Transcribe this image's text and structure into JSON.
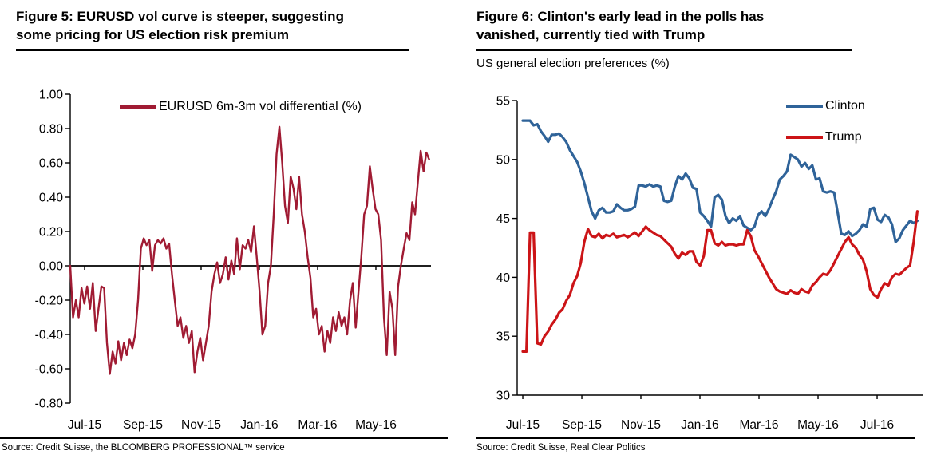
{
  "panels": {
    "fig5": {
      "title": "Figure 5: EURUSD vol curve is steeper, suggesting some pricing for US election risk premium",
      "source": "Source: Credit Suisse, the BLOOMBERG PROFESSIONAL™ service"
    },
    "fig6": {
      "title": "Figure 6: Clinton's early lead in the polls has vanished, currently tied with Trump",
      "subtitle": "US general election preferences (%)",
      "source": "Source: Credit Suisse, Real Clear Politics"
    }
  },
  "chart_data": [
    {
      "type": "line",
      "title": "Figure 5: EURUSD vol curve is steeper, suggesting some pricing for US election risk premium",
      "xlabel": "",
      "ylabel": "",
      "x_tick_labels": [
        "Jul-15",
        "Sep-15",
        "Nov-15",
        "Jan-16",
        "Mar-16",
        "May-16"
      ],
      "y_tick_labels": [
        "1.00",
        "0.80",
        "0.60",
        "0.40",
        "0.20",
        "0.00",
        "-0.20",
        "-0.40",
        "-0.60",
        "-0.80"
      ],
      "ylim": [
        -0.8,
        1.0
      ],
      "grid": false,
      "zero_line": true,
      "legend_position": "top-center",
      "series": [
        {
          "name": "EURUSD 6m-3m vol differential (%)",
          "color": "#A01B33",
          "values": [
            0.0,
            -0.3,
            -0.2,
            -0.3,
            -0.13,
            -0.22,
            -0.12,
            -0.25,
            -0.1,
            -0.38,
            -0.25,
            -0.12,
            -0.13,
            -0.45,
            -0.63,
            -0.5,
            -0.57,
            -0.44,
            -0.55,
            -0.45,
            -0.52,
            -0.43,
            -0.48,
            -0.4,
            -0.2,
            0.1,
            0.16,
            0.12,
            0.15,
            -0.03,
            0.12,
            0.15,
            0.13,
            0.16,
            0.1,
            0.13,
            -0.05,
            -0.2,
            -0.35,
            -0.3,
            -0.42,
            -0.35,
            -0.45,
            -0.38,
            -0.62,
            -0.5,
            -0.42,
            -0.55,
            -0.45,
            -0.35,
            -0.15,
            -0.05,
            0.02,
            -0.1,
            -0.05,
            0.05,
            -0.08,
            0.03,
            -0.05,
            0.16,
            -0.02,
            0.12,
            0.1,
            0.15,
            0.08,
            0.23,
            0.05,
            -0.15,
            -0.4,
            -0.35,
            -0.1,
            0.0,
            0.3,
            0.65,
            0.81,
            0.6,
            0.35,
            0.25,
            0.52,
            0.45,
            0.33,
            0.52,
            0.3,
            0.2,
            0.05,
            -0.07,
            -0.3,
            -0.25,
            -0.4,
            -0.35,
            -0.5,
            -0.38,
            -0.45,
            -0.3,
            -0.38,
            -0.27,
            -0.35,
            -0.3,
            -0.4,
            -0.2,
            -0.1,
            -0.36,
            -0.15,
            0.05,
            0.3,
            0.35,
            0.58,
            0.45,
            0.33,
            0.3,
            0.15,
            -0.3,
            -0.52,
            -0.15,
            -0.25,
            -0.52,
            -0.12,
            0.0,
            0.1,
            0.19,
            0.15,
            0.37,
            0.3,
            0.49,
            0.67,
            0.55,
            0.66,
            0.62
          ]
        }
      ]
    },
    {
      "type": "line",
      "title": "Figure 6: Clinton's early lead in the polls has vanished, currently tied with Trump",
      "subtitle": "US general election preferences (%)",
      "xlabel": "",
      "ylabel": "",
      "x_tick_labels": [
        "Jul-15",
        "Sep-15",
        "Nov-15",
        "Jan-16",
        "Mar-16",
        "May-16",
        "Jul-16"
      ],
      "y_tick_labels": [
        "55",
        "50",
        "45",
        "40",
        "35",
        "30"
      ],
      "ylim": [
        30,
        55
      ],
      "grid": false,
      "zero_line": false,
      "legend_position": "top-right",
      "series": [
        {
          "name": "Clinton",
          "color": "#2F6399",
          "values": [
            53.3,
            53.3,
            53.3,
            52.9,
            53.0,
            52.4,
            52.0,
            51.5,
            52.1,
            52.1,
            52.2,
            51.9,
            51.5,
            50.8,
            50.3,
            49.8,
            49.0,
            48.0,
            46.8,
            45.6,
            45.0,
            45.7,
            45.9,
            45.5,
            45.5,
            45.6,
            46.2,
            45.9,
            45.7,
            45.7,
            45.8,
            46.0,
            47.8,
            47.8,
            47.7,
            47.9,
            47.7,
            47.8,
            47.7,
            46.5,
            46.4,
            46.5,
            47.7,
            48.6,
            48.3,
            48.8,
            48.4,
            47.6,
            47.5,
            45.5,
            45.2,
            44.8,
            44.3,
            46.8,
            47.0,
            46.6,
            45.2,
            44.6,
            45.0,
            44.8,
            45.2,
            44.4,
            44.2,
            44.0,
            44.3,
            45.3,
            45.6,
            45.2,
            45.8,
            46.6,
            47.3,
            48.3,
            48.6,
            49.0,
            50.4,
            50.2,
            50.0,
            49.4,
            49.7,
            49.2,
            49.5,
            48.3,
            48.4,
            47.3,
            47.2,
            47.3,
            47.2,
            45.5,
            43.7,
            43.6,
            43.9,
            43.5,
            43.7,
            44.0,
            44.5,
            44.3,
            45.8,
            45.9,
            44.9,
            44.7,
            45.3,
            45.1,
            44.5,
            43.0,
            43.3,
            44.0,
            44.4,
            44.8,
            44.6,
            44.8
          ]
        },
        {
          "name": "Trump",
          "color": "#CC1417",
          "values": [
            33.7,
            33.7,
            43.8,
            43.8,
            34.4,
            34.3,
            35.0,
            35.4,
            36.0,
            36.4,
            37.0,
            37.3,
            38.0,
            38.5,
            39.5,
            40.1,
            41.2,
            43.0,
            44.1,
            43.5,
            43.4,
            43.7,
            43.3,
            43.6,
            43.5,
            43.7,
            43.4,
            43.5,
            43.6,
            43.4,
            43.6,
            43.8,
            43.5,
            43.9,
            44.3,
            44.0,
            43.8,
            43.6,
            43.5,
            43.2,
            42.9,
            42.6,
            42.0,
            41.6,
            42.1,
            41.9,
            42.2,
            42.2,
            41.3,
            41.0,
            41.8,
            44.0,
            44.0,
            42.9,
            42.7,
            43.0,
            42.7,
            42.8,
            42.8,
            42.7,
            42.8,
            42.8,
            44.0,
            43.5,
            42.3,
            41.8,
            41.2,
            40.6,
            40.0,
            39.5,
            39.0,
            38.8,
            38.7,
            38.6,
            38.9,
            38.7,
            38.6,
            39.0,
            38.8,
            38.7,
            39.3,
            39.6,
            40.0,
            40.3,
            40.2,
            40.6,
            41.2,
            41.8,
            42.4,
            43.0,
            43.4,
            42.8,
            42.5,
            41.9,
            41.5,
            40.5,
            39.0,
            38.5,
            38.3,
            39.0,
            39.5,
            39.3,
            40.0,
            40.3,
            40.2,
            40.5,
            40.8,
            41.0,
            43.0,
            45.6
          ]
        }
      ]
    }
  ]
}
